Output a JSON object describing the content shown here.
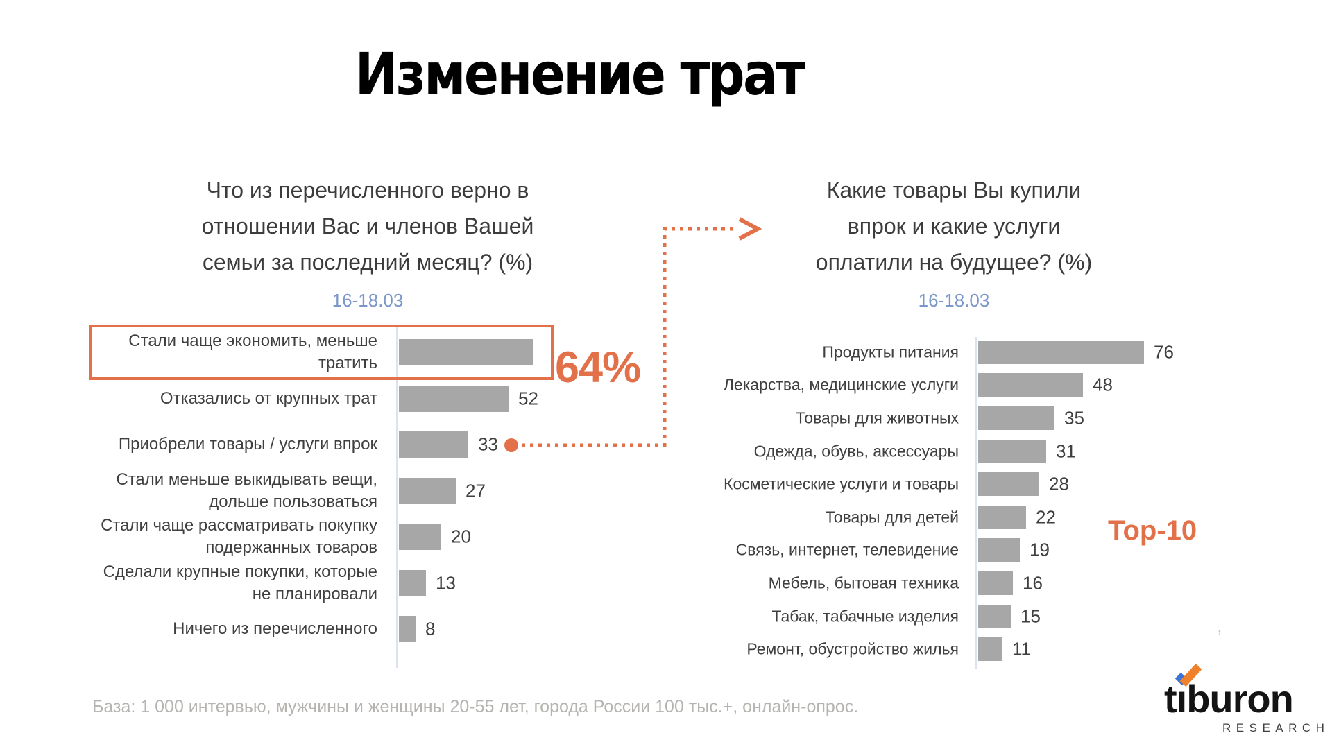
{
  "title": "Изменение трат",
  "footer": "База: 1 000 интервью, мужчины и женщины 20-55 лет, города России 100 тыс.+, онлайн-опрос.",
  "annotations": {
    "callout_value": "64%",
    "top10": "Top-10",
    "stray_mark": "’"
  },
  "logo": {
    "brand": "tiburon",
    "brand_pre": "t",
    "brand_stem": "ı",
    "brand_post": "buron",
    "sub": "RESEARCH"
  },
  "colors": {
    "accent_orange": "#e2714a",
    "bar_gray": "#a7a7a7",
    "axis_gray": "#dde3ee",
    "date_blue": "#7b96c9",
    "label_dark": "#3f3f3f",
    "footer_gray": "#b6b4b1",
    "logo_blue": "#3a74db",
    "logo_orange": "#f0812c"
  },
  "chart_data": [
    {
      "id": "spending-change",
      "type": "bar",
      "orientation": "horizontal",
      "title": "Что из перечисленного верно в отношении Вас и членов Вашей семьи за последний месяц? (%)",
      "subtitle": "16-18.03",
      "categories": [
        "Стали чаще экономить, меньше тратить",
        "Отказались от крупных трат",
        "Приобрели товары / услуги впрок",
        "Стали меньше выкидывать вещи, дольше пользоваться",
        "Стали чаще рассматривать покупку подержанных товаров",
        "Сделали крупные покупки, которые не планировали",
        "Ничего из перечисленного"
      ],
      "values": [
        64,
        52,
        33,
        27,
        20,
        13,
        8
      ],
      "bar_color": "#a7a7a7",
      "grid": false,
      "highlighted_index": 0,
      "callout": {
        "category_index": 0,
        "text": "64%"
      },
      "linked_index": 2
    },
    {
      "id": "stockpiled-goods",
      "type": "bar",
      "orientation": "horizontal",
      "title": "Какие товары Вы купили впрок и какие услуги оплатили на будущее? (%)",
      "subtitle": "16-18.03",
      "categories": [
        "Продукты питания",
        "Лекарства, медицинские услуги",
        "Товары для животных",
        "Одежда, обувь, аксессуары",
        "Косметические услуги и товары",
        "Товары для детей",
        "Связь, интернет, телевидение",
        "Мебель, бытовая техника",
        "Табак, табачные изделия",
        "Ремонт, обустройство жилья"
      ],
      "values": [
        76,
        48,
        35,
        31,
        28,
        22,
        19,
        16,
        15,
        11
      ],
      "bar_color": "#a7a7a7",
      "grid": false,
      "note": "Top-10"
    }
  ]
}
